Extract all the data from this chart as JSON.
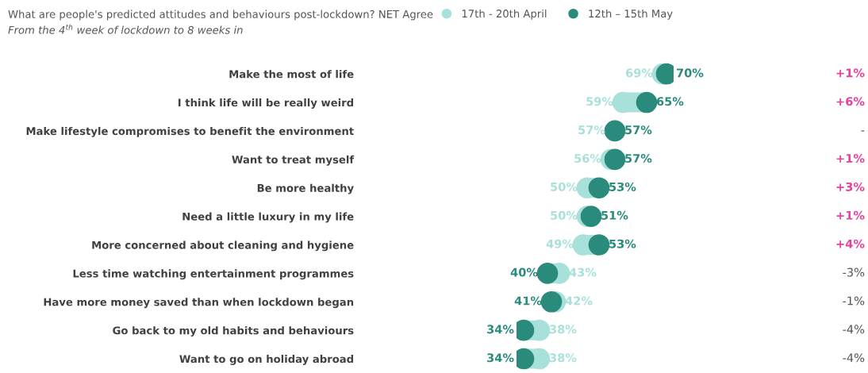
{
  "chart_data": {
    "type": "scatter",
    "orientation": "horizontal",
    "title": "What are people's predicted attitudes and behaviours post-lockdown? NET Agree",
    "subtitle": "From the 4$^{th}$ week of lockdown to 8 weeks in",
    "categories": [
      "Make the most of life",
      "I think life will be really weird",
      "Make lifestyle compromises to benefit the environment",
      "Want to treat myself",
      "Be more healthy",
      "Need a little luxury in my life",
      "More concerned about cleaning and hygiene",
      "Less time watching entertainment programmes",
      "Have more money saved than when lockdown began",
      "Go back to my old habits and behaviours",
      "Want to go on holiday abroad"
    ],
    "series": [
      {
        "name": "17th - 20th April",
        "color": "#a8e0da",
        "values": [
          69,
          59,
          57,
          56,
          50,
          50,
          49,
          43,
          42,
          38,
          38
        ],
        "value_labels": [
          "69%",
          "59%",
          "57%",
          "56%",
          "50%",
          "50%",
          "49%",
          "43%",
          "42%",
          "38%",
          "38%"
        ]
      },
      {
        "name": "12th – 15th May",
        "color": "#2a8a7c",
        "values": [
          70,
          65,
          57,
          57,
          53,
          51,
          53,
          40,
          41,
          34,
          34
        ],
        "value_labels": [
          "70%",
          "65%",
          "57%",
          "57%",
          "53%",
          "51%",
          "53%",
          "40%",
          "41%",
          "34%",
          "34%"
        ]
      }
    ],
    "tick_labels": "y",
    "marker": "circle",
    "legend": "top",
    "annotations": [
      "+1%",
      "+6%",
      "-",
      "+1%",
      "+3%",
      "+1%",
      "+4%",
      "-3%",
      "-1%",
      "-4%",
      "-4%"
    ]
  }
}
